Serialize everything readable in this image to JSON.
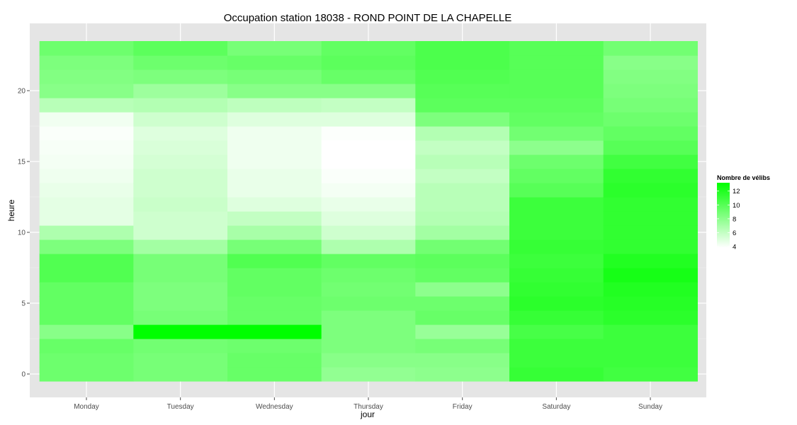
{
  "chart_data": {
    "type": "heatmap",
    "title": "Occupation station 18038 - ROND POINT DE LA CHAPELLE",
    "xlabel": "jour",
    "ylabel": "heure",
    "x_categories": [
      "Monday",
      "Tuesday",
      "Wednesday",
      "Thursday",
      "Friday",
      "Saturday",
      "Sunday"
    ],
    "y_hours": [
      0,
      1,
      2,
      3,
      4,
      5,
      6,
      7,
      8,
      9,
      10,
      11,
      12,
      13,
      14,
      15,
      16,
      17,
      18,
      19,
      20,
      21,
      22,
      23
    ],
    "y_ticks": [
      0,
      5,
      10,
      15,
      20
    ],
    "ylim": [
      -0.5,
      23.5
    ],
    "grid": true,
    "legend": {
      "title": "Nombre de vélibs",
      "position": "right",
      "breaks": [
        4,
        6,
        8,
        10,
        12
      ],
      "range": [
        3.8,
        13.2
      ],
      "color_low": "#ffffff",
      "color_high": "#00ff00"
    },
    "values": {
      "Monday": [
        9.2,
        9.2,
        9.4,
        8.2,
        9.6,
        9.6,
        9.6,
        10.2,
        10.2,
        8.6,
        6.8,
        4.8,
        4.8,
        4.6,
        4.4,
        4.2,
        4.1,
        4.0,
        4.3,
        6.4,
        8.2,
        8.4,
        8.6,
        9.2
      ],
      "Tuesday": [
        8.8,
        8.8,
        9.0,
        13.2,
        8.8,
        8.6,
        8.6,
        8.8,
        8.8,
        7.2,
        5.6,
        5.6,
        5.8,
        5.6,
        5.6,
        5.4,
        5.2,
        5.0,
        5.6,
        6.6,
        7.4,
        8.6,
        9.2,
        9.8
      ],
      "Wednesday": [
        9.4,
        9.4,
        9.2,
        13.2,
        9.4,
        9.4,
        9.6,
        9.6,
        10.2,
        8.8,
        7.0,
        6.0,
        5.0,
        4.6,
        4.6,
        4.4,
        4.4,
        4.4,
        5.0,
        6.2,
        8.2,
        8.8,
        9.4,
        8.8
      ],
      "Thursday": [
        7.8,
        8.2,
        8.6,
        8.6,
        8.6,
        9.2,
        9.0,
        9.2,
        9.6,
        6.8,
        5.6,
        5.0,
        4.6,
        4.2,
        4.0,
        3.8,
        3.8,
        3.9,
        5.0,
        6.0,
        8.2,
        9.4,
        9.8,
        9.6
      ],
      "Friday": [
        8.0,
        8.2,
        8.8,
        7.6,
        9.4,
        9.2,
        8.0,
        9.6,
        9.8,
        9.0,
        7.2,
        6.6,
        6.4,
        6.4,
        6.0,
        6.4,
        6.0,
        6.6,
        8.6,
        9.8,
        10.0,
        10.2,
        10.4,
        10.4
      ],
      "Saturday": [
        11.2,
        11.0,
        11.0,
        10.6,
        11.2,
        11.6,
        11.4,
        11.2,
        11.0,
        11.2,
        11.0,
        11.0,
        11.0,
        10.0,
        9.6,
        9.2,
        8.0,
        9.0,
        9.6,
        9.8,
        10.0,
        10.0,
        10.0,
        10.0
      ],
      "Sunday": [
        10.8,
        11.0,
        11.0,
        11.0,
        11.6,
        11.8,
        12.0,
        12.4,
        12.0,
        11.4,
        11.4,
        11.4,
        11.4,
        11.6,
        11.4,
        10.8,
        10.0,
        9.6,
        9.2,
        8.8,
        8.6,
        8.4,
        8.2,
        9.0
      ]
    }
  }
}
